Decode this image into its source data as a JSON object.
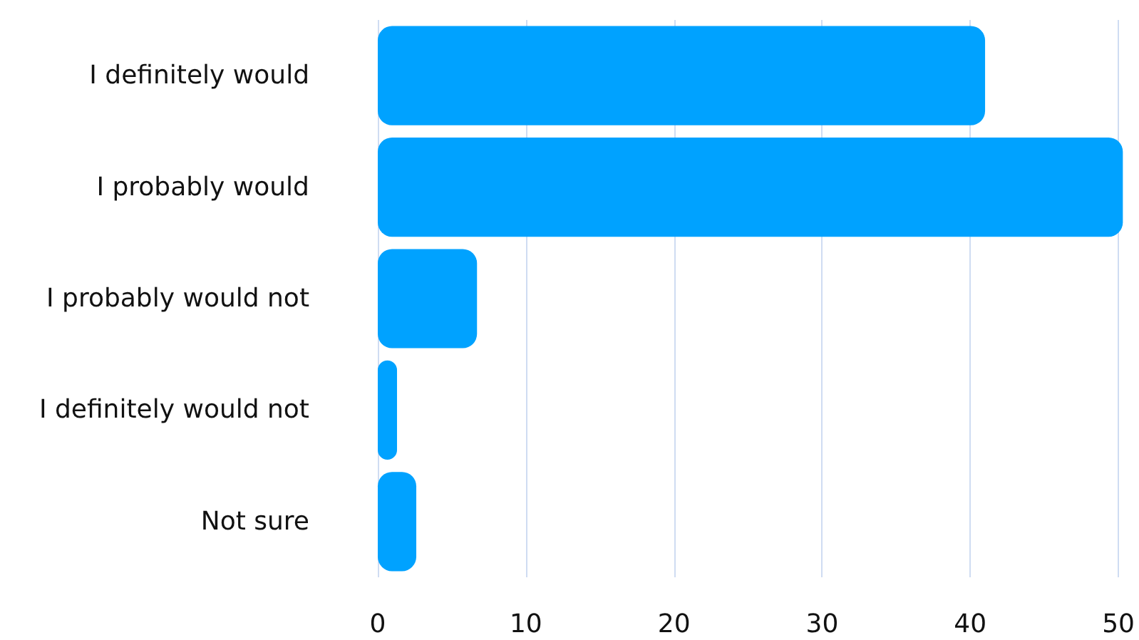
{
  "chart_data": {
    "type": "bar",
    "orientation": "horizontal",
    "categories": [
      "I definitely would",
      "I probably would",
      "I probably would not",
      "I definitely would not",
      "Not sure"
    ],
    "values": [
      41,
      50.3,
      6.7,
      1.3,
      2.6
    ],
    "color": "#00a2ff",
    "xlim": [
      0,
      50.5
    ],
    "xticks": [
      0,
      10,
      20,
      30,
      40,
      50
    ],
    "grid": "x"
  }
}
